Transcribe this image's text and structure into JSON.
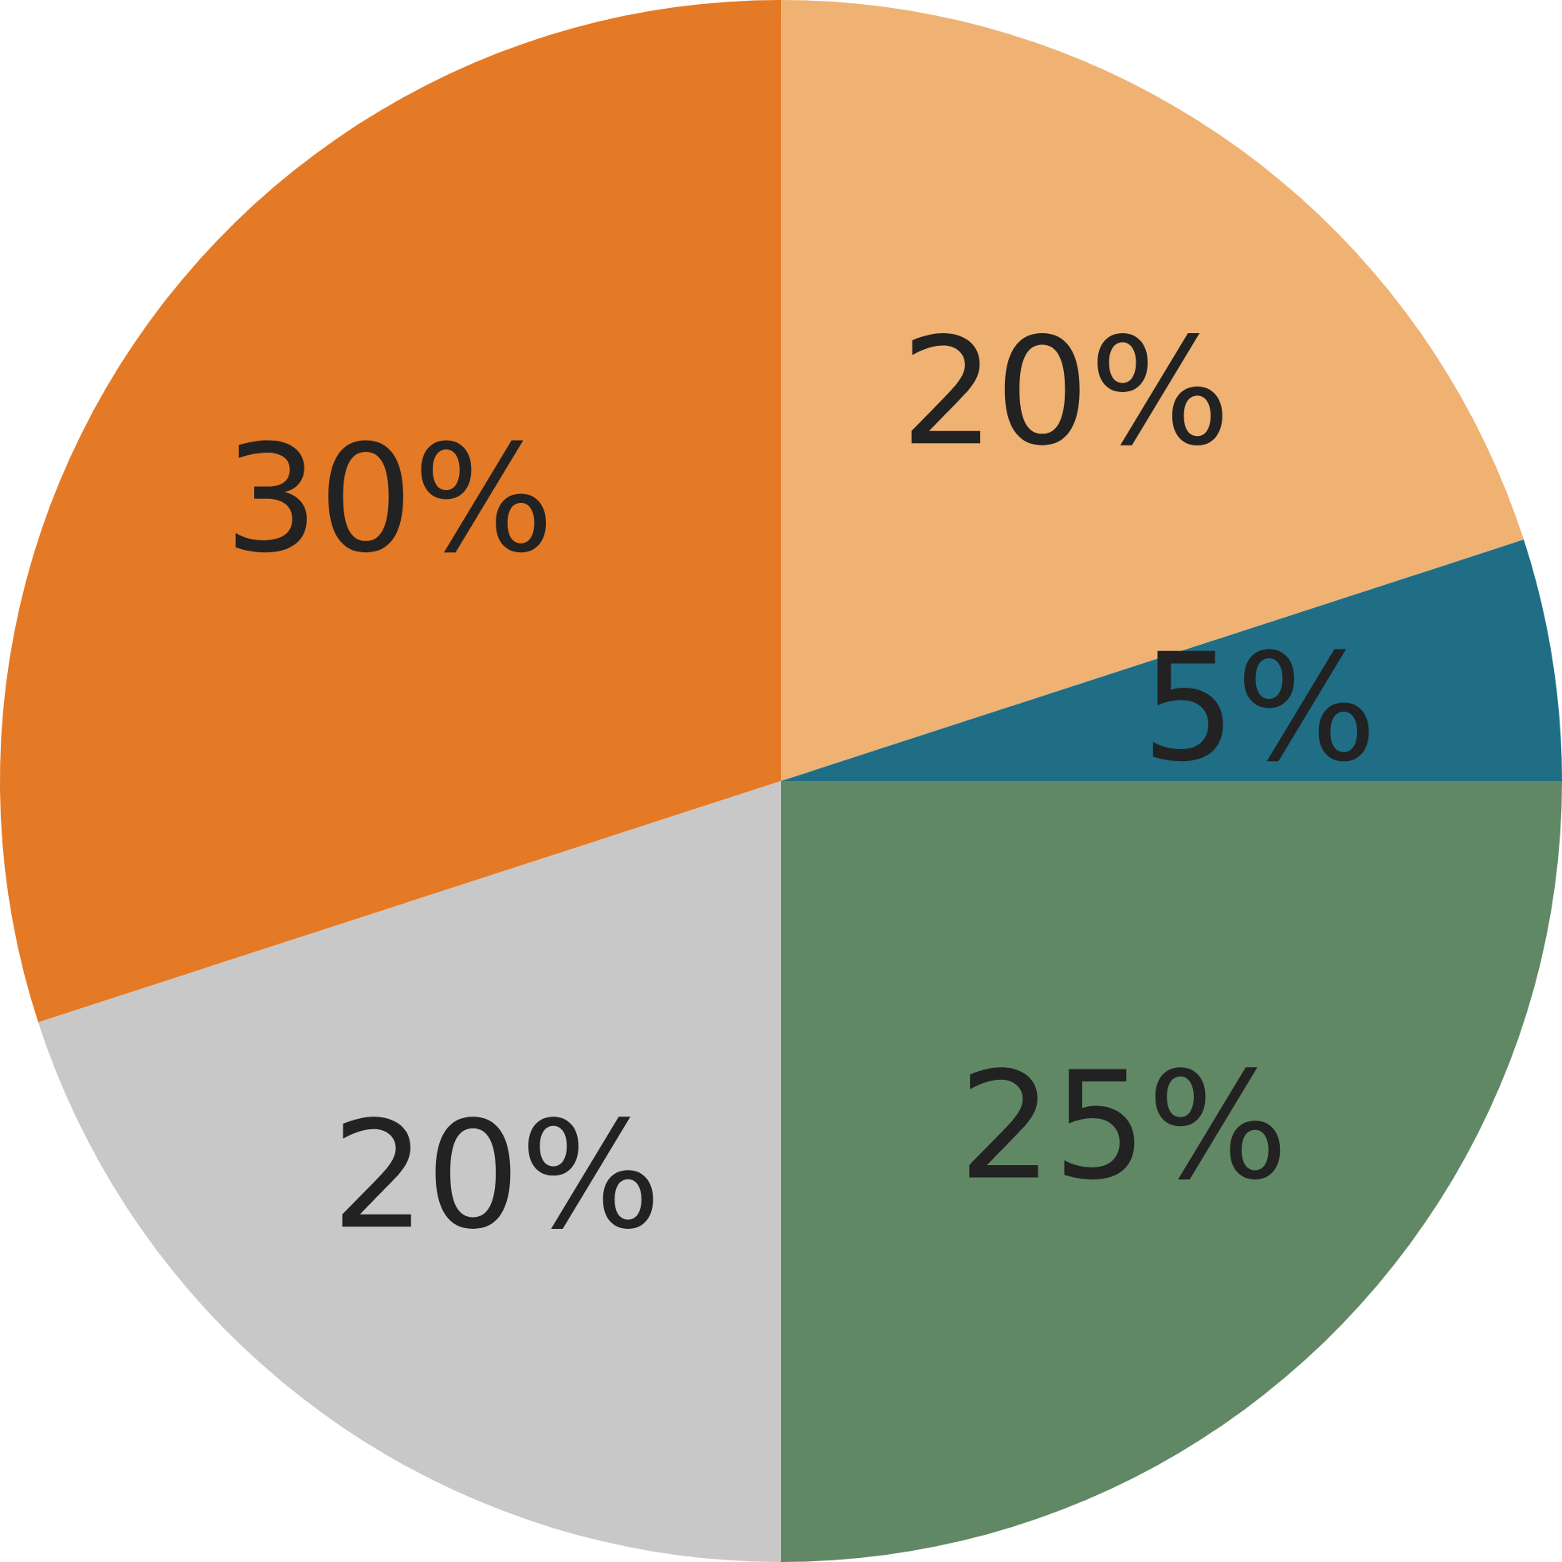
{
  "chart_data": {
    "type": "pie",
    "categories": [
      null,
      null,
      null,
      null,
      null
    ],
    "values": [
      20,
      5,
      25,
      20,
      30
    ],
    "value_labels": [
      "20%",
      "5%",
      "25%",
      "20%",
      "30%"
    ],
    "colors": [
      "#efb273",
      "#1f6e85",
      "#618865",
      "#c8c8c8",
      "#e47a26"
    ]
  }
}
